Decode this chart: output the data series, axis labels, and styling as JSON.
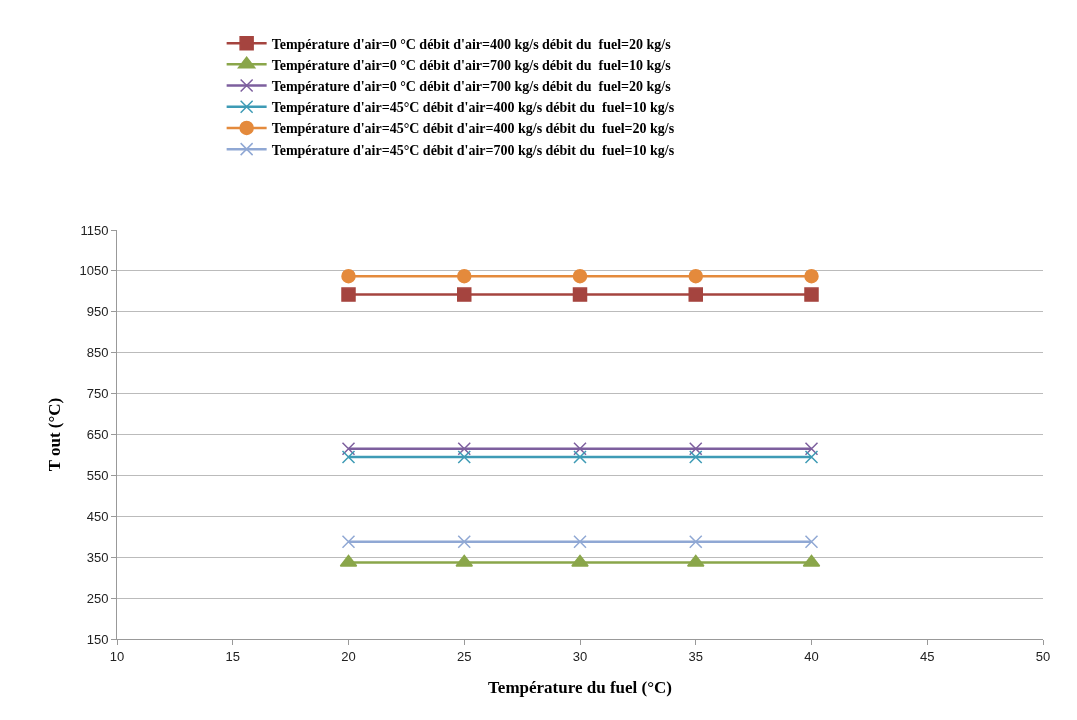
{
  "chart_data": {
    "type": "line",
    "xlabel": "Température du fuel (°C)",
    "ylabel": "T out (°C)",
    "x": [
      20,
      25,
      30,
      35,
      40
    ],
    "series": [
      {
        "name": "Température d'air=0 °C débit d'air=400 kg/s débit du  fuel=20 kg/s",
        "color": "#a5443f",
        "marker": "square",
        "values": [
          992,
          992,
          992,
          992,
          992
        ]
      },
      {
        "name": "Température d'air=0 °C débit d'air=700 kg/s débit du  fuel=10 kg/s",
        "color": "#8aa64a",
        "marker": "triangle",
        "values": [
          337,
          337,
          337,
          337,
          337
        ]
      },
      {
        "name": "Température d'air=0 °C débit d'air=700 kg/s débit du  fuel=20 kg/s",
        "color": "#7d5f9e",
        "marker": "cross",
        "values": [
          615,
          615,
          615,
          615,
          615
        ]
      },
      {
        "name": "Température d'air=45°C débit d'air=400 kg/s débit du  fuel=10 kg/s",
        "color": "#3e9bb5",
        "marker": "cross",
        "values": [
          595,
          595,
          595,
          595,
          595
        ]
      },
      {
        "name": "Température d'air=45°C débit d'air=400 kg/s débit du  fuel=20 kg/s",
        "color": "#e48a3c",
        "marker": "circle",
        "values": [
          1037,
          1037,
          1037,
          1037,
          1037
        ]
      },
      {
        "name": "Température d'air=45°C débit d'air=700 kg/s débit du  fuel=10 kg/s",
        "color": "#90a8d4",
        "marker": "cross",
        "values": [
          388,
          388,
          388,
          388,
          388
        ]
      }
    ],
    "xlim": [
      10,
      50
    ],
    "xticks": [
      10,
      15,
      20,
      25,
      30,
      35,
      40,
      45,
      50
    ],
    "ylim": [
      150,
      1150
    ],
    "yticks": [
      150,
      250,
      350,
      450,
      550,
      650,
      750,
      850,
      950,
      1050,
      1150
    ],
    "grid": "y",
    "legend": "top",
    "line_style": "solid"
  }
}
